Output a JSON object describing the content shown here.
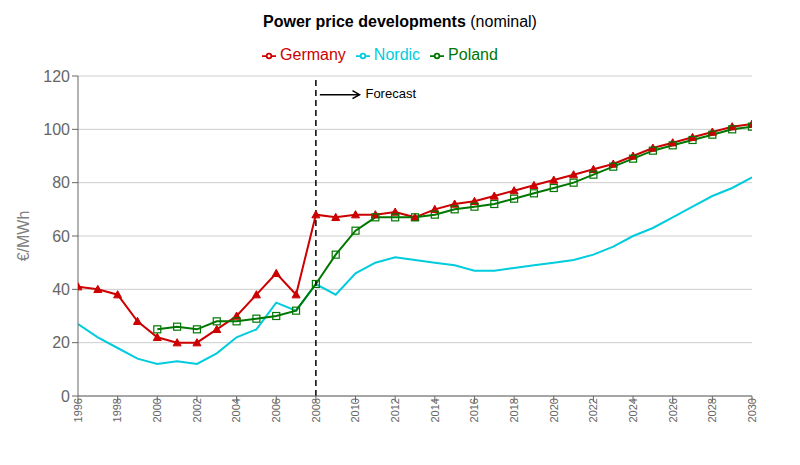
{
  "chart_data": {
    "type": "line",
    "title": "Power price developments",
    "subtitle": "(nominal)",
    "y_label": "€/MWh",
    "x": [
      1996,
      1997,
      1998,
      1999,
      2000,
      2001,
      2002,
      2003,
      2004,
      2005,
      2006,
      2007,
      2008,
      2009,
      2010,
      2011,
      2012,
      2013,
      2014,
      2015,
      2016,
      2017,
      2018,
      2019,
      2020,
      2021,
      2022,
      2023,
      2024,
      2025,
      2026,
      2027,
      2028,
      2029,
      2030
    ],
    "series": [
      {
        "name": "Nordic",
        "color": "#00CCDD",
        "marker": "none",
        "values": [
          27,
          22,
          18,
          14,
          12,
          13,
          12,
          16,
          22,
          25,
          35,
          32,
          42,
          38,
          46,
          50,
          52,
          51,
          50,
          49,
          47,
          47,
          48,
          49,
          50,
          51,
          53,
          56,
          60,
          63,
          67,
          71,
          75,
          78,
          82
        ]
      },
      {
        "name": "Germany",
        "color": "#CC0000",
        "marker": "triangle",
        "values": [
          41,
          40,
          38,
          28,
          22,
          20,
          20,
          25,
          30,
          38,
          46,
          38,
          68,
          67,
          68,
          68,
          69,
          67,
          70,
          72,
          73,
          75,
          77,
          79,
          81,
          83,
          85,
          87,
          90,
          93,
          95,
          97,
          99,
          101,
          102
        ]
      },
      {
        "name": "Poland",
        "color": "#007700",
        "marker": "square",
        "values": [
          null,
          null,
          null,
          null,
          25,
          26,
          25,
          28,
          28,
          29,
          30,
          32,
          42,
          53,
          62,
          67,
          67,
          67,
          68,
          70,
          71,
          72,
          74,
          76,
          78,
          80,
          83,
          86,
          89,
          92,
          94,
          96,
          98,
          100,
          101
        ]
      }
    ],
    "xlim": [
      1996,
      2030
    ],
    "xticks": [
      1996,
      1998,
      2000,
      2002,
      2004,
      2006,
      2008,
      2010,
      2012,
      2014,
      2016,
      2018,
      2020,
      2022,
      2024,
      2026,
      2028,
      2030
    ],
    "ylim": [
      0,
      120
    ],
    "yticks": [
      0,
      20,
      40,
      60,
      80,
      100,
      120
    ],
    "grid": true,
    "legend": "top",
    "annotations": [
      {
        "type": "vline",
        "x": 2008,
        "color": "#000000",
        "line_style": "dashed"
      },
      {
        "text": "Forecast",
        "x": 2010.5,
        "y": 113,
        "arrow_from": 2008.2,
        "arrow_to": 2010.2,
        "color": "#000000"
      }
    ]
  }
}
